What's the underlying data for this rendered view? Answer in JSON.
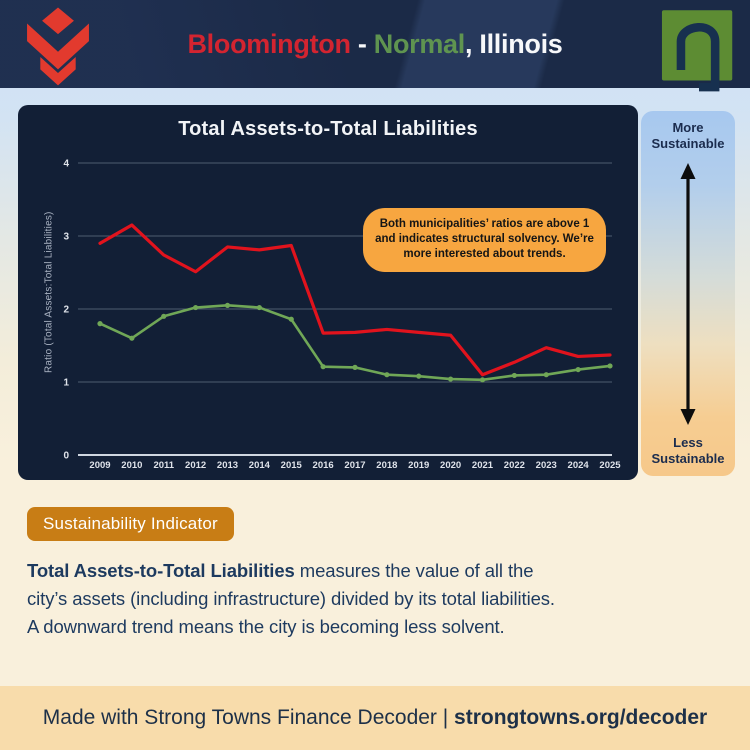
{
  "header": {
    "city_a": "Bloomington",
    "separator": " - ",
    "city_b": "Normal",
    "state": ", Illinois",
    "city_a_color": "#d32430",
    "city_b_color": "#5f9450"
  },
  "chart_data": {
    "type": "line",
    "title": "Total Assets-to-Total Liabilities",
    "ylabel": "Ratio (Total Assets:Total Liabilities)",
    "x": [
      2009,
      2010,
      2011,
      2012,
      2013,
      2014,
      2015,
      2016,
      2017,
      2018,
      2019,
      2020,
      2021,
      2022,
      2023,
      2024,
      2025
    ],
    "series": [
      {
        "name": "Bloomington",
        "color": "#e1131d",
        "line_width": 3.2,
        "markers": false,
        "values": [
          2.9,
          3.15,
          2.74,
          2.51,
          2.85,
          2.81,
          2.87,
          1.67,
          1.68,
          1.72,
          1.68,
          1.64,
          1.1,
          1.27,
          1.47,
          1.35,
          1.37
        ]
      },
      {
        "name": "Normal",
        "color": "#70a757",
        "line_width": 2.6,
        "markers": true,
        "values": [
          1.8,
          1.6,
          1.9,
          2.02,
          2.05,
          2.02,
          1.86,
          1.21,
          1.2,
          1.1,
          1.08,
          1.04,
          1.03,
          1.09,
          1.1,
          1.17,
          1.22
        ]
      }
    ],
    "ylim": [
      0,
      4
    ],
    "yticks": [
      0,
      1,
      2,
      3,
      4
    ],
    "grid": true,
    "legend": "none",
    "annotation": "Both municipalities’ ratios are above 1 and indicates structural solvency. We’re more interested about trends.",
    "panel_background": "#121f36"
  },
  "scale_panel": {
    "top_label": "More\nSustainable",
    "bottom_label": "Less\nSustainable"
  },
  "indicator_badge": "Sustainability Indicator",
  "description": {
    "bold": "Total Assets-to-Total Liabilities",
    "rest": " measures the value of all the\ncity’s assets (including infrastructure) divided by its total liabilities.\nA downward trend means the city is becoming less solvent."
  },
  "footer": {
    "regular": "Made with Strong Towns Finance Decoder | ",
    "bold": "strongtowns.org/decoder"
  },
  "colors": {
    "badge_orange": "#c87d15",
    "annotation_orange": "#f7a640",
    "footer_band": "#f8dcab",
    "text_navy": "#1d3a5f",
    "header_navy": "#1b2a47"
  }
}
